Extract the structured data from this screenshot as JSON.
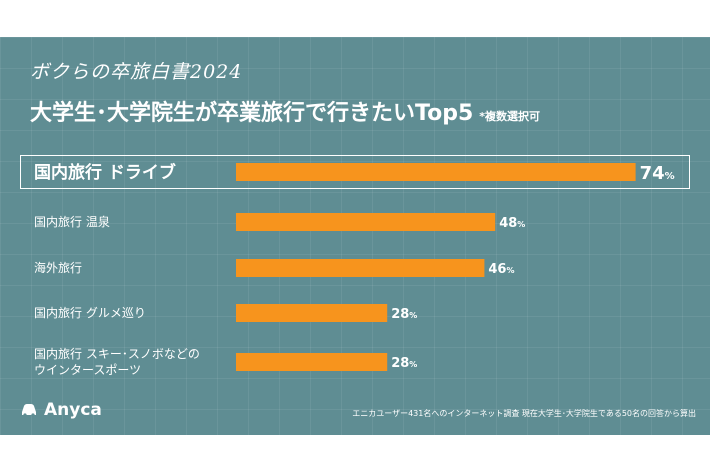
{
  "header": {
    "series_label": "ボクらの卒旅白書2024",
    "title": "大学生･大学院生が卒業旅行で行きたいTop5",
    "note": "*複数選択可"
  },
  "chart_data": {
    "type": "bar",
    "orientation": "horizontal",
    "categories": [
      "国内旅行 ドライブ",
      "国内旅行 温泉",
      "海外旅行",
      "国内旅行 グルメ巡り",
      "国内旅行 スキー･スノボなどの ウインタースポーツ"
    ],
    "category_lines": [
      [
        "国内旅行 ドライブ"
      ],
      [
        "国内旅行 温泉"
      ],
      [
        "海外旅行"
      ],
      [
        "国内旅行 グルメ巡り"
      ],
      [
        "国内旅行 スキー･スノボなどの",
        "ウインタースポーツ"
      ]
    ],
    "values": [
      74,
      48,
      46,
      28,
      28
    ],
    "unit": "%",
    "xlim": [
      0,
      100
    ],
    "bar_color": "#f7941d",
    "highlight_index": 0
  },
  "footer": {
    "logo": "Anyca",
    "source": "エニカユーザー431名へのインターネット調査 現在大学生･大学院生である50名の回答から算出"
  },
  "colors": {
    "background": "#5f8d93",
    "text": "#ffffff",
    "bar": "#f7941d"
  }
}
